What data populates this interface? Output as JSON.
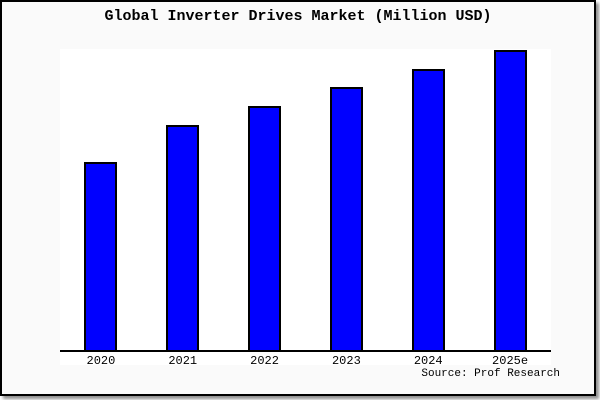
{
  "page": {
    "background_color": "#fafafa",
    "plot_background_color": "#ffffff",
    "frame_border_color": "#000000"
  },
  "chart_data": {
    "type": "bar",
    "title": "Global Inverter Drives Market (Million USD)",
    "categories": [
      "2020",
      "2021",
      "2022",
      "2023",
      "2024",
      "2025e"
    ],
    "values": [
      188,
      225,
      244,
      263,
      281,
      300
    ],
    "value_unit": "relative height (no value axis labels shown in image)",
    "xlabel": "",
    "ylabel": "",
    "ylim": [
      0,
      301
    ],
    "grid": false,
    "legend": false,
    "bar_color": "#0000FF",
    "bar_border_color": "#000000",
    "source_label": "Source: Prof Research"
  }
}
